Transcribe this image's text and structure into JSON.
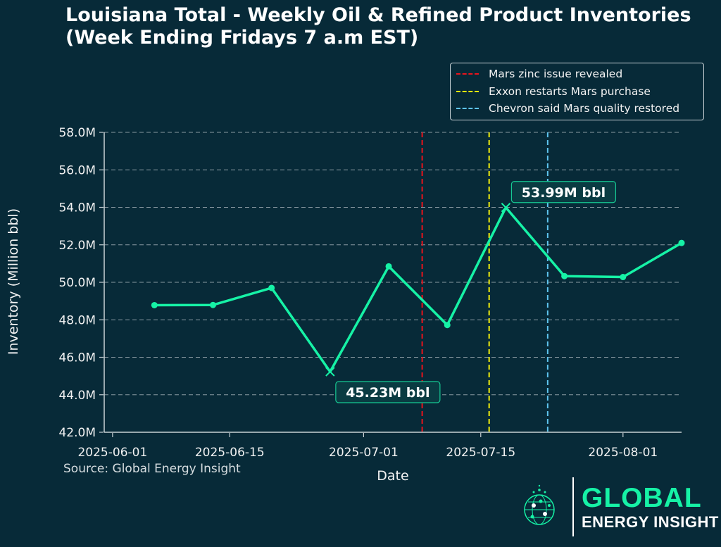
{
  "chart_data": {
    "type": "line",
    "title": "Louisiana Total - Weekly Oil & Refined Product Inventories (Week Ending Fridays 7 a.m EST)",
    "xlabel": "Date",
    "ylabel": "Inventory (Million bbl)",
    "ylim": [
      42.0,
      58.0
    ],
    "yticks": [
      42,
      44,
      46,
      48,
      50,
      52,
      54,
      56,
      58
    ],
    "ytick_labels": [
      "42.0M",
      "44.0M",
      "46.0M",
      "48.0M",
      "50.0M",
      "52.0M",
      "54.0M",
      "56.0M",
      "58.0M"
    ],
    "xticks": [
      "2025-06-01",
      "2025-06-15",
      "2025-07-01",
      "2025-07-15",
      "2025-08-01"
    ],
    "xlim": [
      "2025-05-31",
      "2025-08-08"
    ],
    "grid": "horizontal dashed",
    "series": [
      {
        "name": "Inventory",
        "color": "#16f2a6",
        "x": [
          "2025-06-06",
          "2025-06-13",
          "2025-06-20",
          "2025-06-27",
          "2025-07-04",
          "2025-07-11",
          "2025-07-18",
          "2025-07-25",
          "2025-08-01",
          "2025-08-08"
        ],
        "values": [
          48.78,
          48.79,
          49.7,
          45.23,
          50.85,
          47.72,
          53.99,
          50.33,
          50.28,
          52.1
        ]
      }
    ],
    "vlines": [
      {
        "date": "2025-07-08",
        "label": "Mars zinc issue revealed",
        "color": "#e8141c"
      },
      {
        "date": "2025-07-16",
        "label": "Exxon restarts Mars purchase",
        "color": "#f5f00c"
      },
      {
        "date": "2025-07-23",
        "label": "Chevron said Mars quality restored",
        "color": "#5ec4ee"
      }
    ],
    "annotations": [
      {
        "date": "2025-07-18",
        "value": 53.99,
        "text": "53.99M bbl",
        "kind": "max"
      },
      {
        "date": "2025-06-27",
        "value": 45.23,
        "text": "45.23M bbl",
        "kind": "min"
      }
    ],
    "legend_position": "top-right"
  },
  "source": "Source: Global Energy Insight",
  "logo": {
    "line1": "GLOBAL",
    "line2": "ENERGY INSIGHT"
  },
  "colors": {
    "background": "#072a38",
    "line": "#16f2a6",
    "grid": "#8a9aa2",
    "brand": "#16f2a6"
  }
}
